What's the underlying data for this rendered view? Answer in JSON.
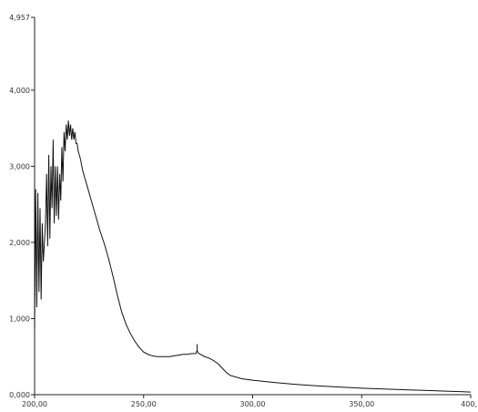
{
  "chart_data": {
    "type": "line",
    "title": "",
    "xlabel": "",
    "ylabel": "",
    "xlim": [
      200,
      400
    ],
    "ylim": [
      0,
      4.957
    ],
    "x_ticks": [
      "200,00",
      "250,00",
      "300,00",
      "350,00",
      "400,"
    ],
    "y_ticks": [
      "0,000",
      "1,000",
      "2,000",
      "3,000",
      "4,000",
      "4,957"
    ],
    "grid": false,
    "legend": "none",
    "line_color": "#111111",
    "series": [
      {
        "x": [
          200,
          200.5,
          201,
          201.5,
          202,
          202.5,
          203,
          203.5,
          204,
          204.5,
          205,
          205.5,
          206,
          206.5,
          207,
          207.5,
          208,
          208.5,
          209,
          209.5,
          210,
          210.5,
          211,
          211.5,
          212,
          212.5,
          213,
          213.5,
          214,
          214.5,
          215,
          215.5,
          216,
          216.5,
          217,
          217.5,
          218,
          218.5,
          219,
          219.5,
          220,
          221,
          222,
          223,
          224,
          225,
          226,
          227,
          228,
          229,
          230,
          232,
          234,
          236,
          238,
          240,
          242,
          244,
          246,
          248,
          250,
          252,
          254,
          256,
          258,
          260,
          262,
          264,
          266,
          268,
          270,
          272,
          274,
          274.5,
          275,
          276,
          278,
          280,
          282,
          284,
          286,
          288,
          290,
          295,
          300,
          310,
          320,
          330,
          340,
          350,
          360,
          370,
          380,
          390,
          400
        ],
        "values": [
          0.85,
          2.7,
          1.15,
          2.65,
          1.35,
          2.45,
          1.25,
          2.25,
          1.75,
          2.0,
          2.25,
          2.9,
          1.95,
          3.15,
          2.05,
          3.0,
          2.45,
          3.35,
          2.25,
          3.0,
          2.35,
          3.0,
          2.3,
          2.9,
          2.55,
          3.25,
          2.8,
          3.45,
          3.2,
          3.55,
          3.35,
          3.6,
          3.4,
          3.55,
          3.35,
          3.5,
          3.35,
          3.45,
          3.3,
          3.3,
          3.2,
          3.1,
          2.95,
          2.85,
          2.75,
          2.65,
          2.55,
          2.45,
          2.35,
          2.25,
          2.15,
          1.98,
          1.78,
          1.55,
          1.3,
          1.08,
          0.92,
          0.8,
          0.7,
          0.62,
          0.56,
          0.53,
          0.51,
          0.5,
          0.5,
          0.5,
          0.5,
          0.51,
          0.52,
          0.53,
          0.53,
          0.54,
          0.54,
          0.58,
          0.55,
          0.53,
          0.5,
          0.48,
          0.45,
          0.41,
          0.35,
          0.29,
          0.25,
          0.21,
          0.19,
          0.16,
          0.135,
          0.115,
          0.1,
          0.085,
          0.075,
          0.065,
          0.055,
          0.045,
          0.035
        ]
      }
    ],
    "peak_marker": {
      "x": 274.5,
      "y": 0.58
    }
  }
}
